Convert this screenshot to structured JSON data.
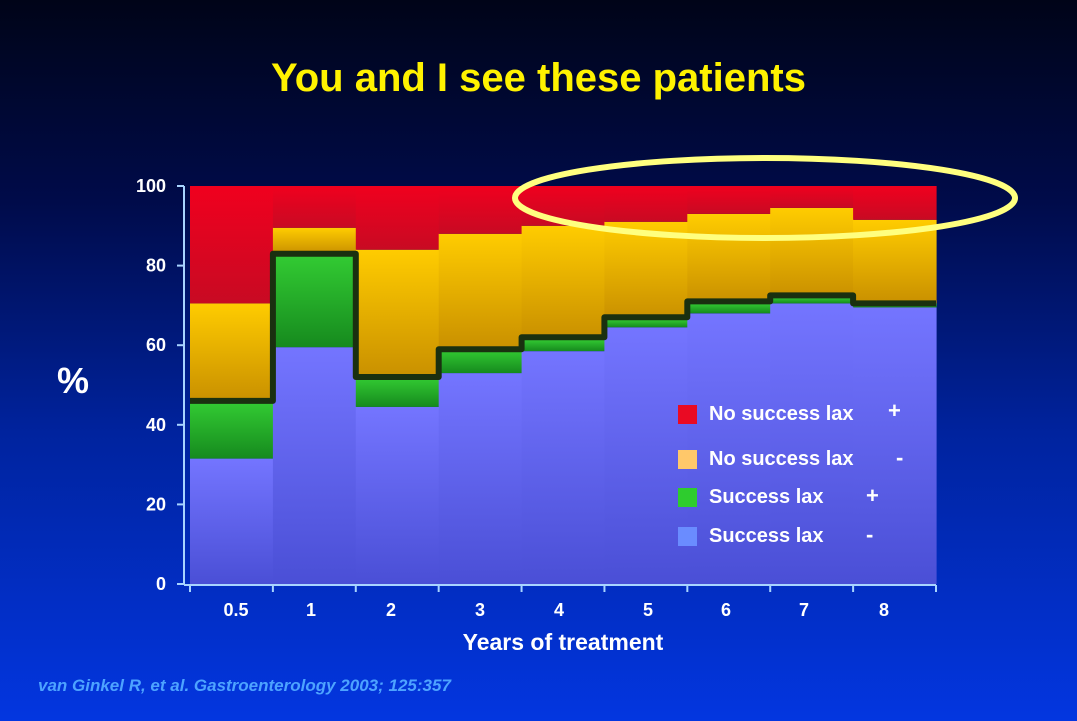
{
  "slide": {
    "title": "You and I see these patients",
    "citation": "van Ginkel R, et al. Gastroenterology 2003; 125:357"
  },
  "chart_data": {
    "type": "area",
    "stacked": true,
    "categories": [
      "0.5",
      "1",
      "2",
      "3",
      "4",
      "5",
      "6",
      "7",
      "8"
    ],
    "xlabel": "Years of treatment",
    "ylabel": "%",
    "ylim": [
      0,
      100
    ],
    "yticks": [
      "0",
      "20",
      "40",
      "60",
      "80",
      "100"
    ],
    "grid": false,
    "legend_position": "lower-right",
    "series": [
      {
        "name": "Success lax",
        "sign": "-",
        "color": "#6f70ff",
        "values": [
          31.5,
          59.5,
          44.5,
          53,
          58.5,
          64.5,
          68,
          70.5,
          69.5
        ]
      },
      {
        "name": "Success lax",
        "sign": "+",
        "color": "#1fbf1f",
        "values": [
          14.5,
          23.5,
          7.5,
          6,
          3,
          2,
          2.5,
          1.5,
          1
        ]
      },
      {
        "name": "No success lax",
        "sign": "-",
        "color": "#ffc300",
        "values": [
          24.5,
          6.5,
          32,
          29,
          28.5,
          24.5,
          22.5,
          22.5,
          21
        ]
      },
      {
        "name": "No success lax",
        "sign": "+",
        "color": "#ea0a23",
        "values": [
          29.5,
          10.5,
          16,
          12,
          10,
          9,
          7,
          5.5,
          8.5
        ]
      }
    ],
    "highlight_line": [
      46,
      83,
      52,
      59,
      62,
      67,
      71,
      72.5,
      70.5
    ],
    "highlight_color": "#1a3010",
    "annotation": {
      "shape": "ellipse",
      "color": "#ffff7f",
      "target": "No success lax + (years 4-8)"
    }
  }
}
